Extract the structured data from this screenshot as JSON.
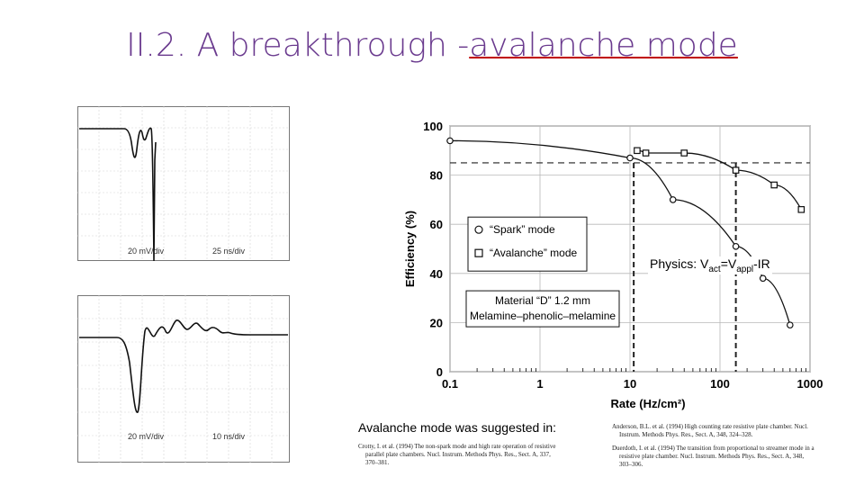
{
  "slide": {
    "title_prefix": "II.2. A breakthrough -",
    "title_highlight": "avalanche mode",
    "physics_label": "Physics: V",
    "physics_sub1": "act",
    "physics_mid": "=V",
    "physics_sub2": "appl",
    "physics_end": "-IR",
    "suggested_text": "Avalanche mode was suggested in:"
  },
  "scope_top": {
    "volts": "20 mV/div",
    "time": "25 ns/div"
  },
  "scope_bottom": {
    "volts": "20 mV/div",
    "time": "10 ns/div"
  },
  "references": {
    "crotty_line1": "Crotty, I. et al. (1994) The non-spark mode and high rate operation of resistive",
    "crotty_line2": "parallel plate chambers. Nucl. Instrum. Methods Phys. Res., Sect. A, 337,",
    "crotty_line3": "370–381.",
    "anderson_line1": "Anderson, B.L. et al. (1994) High counting rate resistive plate chamber. Nucl.",
    "anderson_line2": "Instrum. Methods Phys. Res., Sect. A, 348, 324–328.",
    "duerdoth_line1": "Duerdoth, I. et al. (1994) The transition from proportional to streamer mode in a",
    "duerdoth_line2": "resistive plate chamber. Nucl. Instrum. Methods Phys. Res., Sect. A, 348,",
    "duerdoth_line3": "303–306."
  },
  "chart_data": {
    "type": "scatter",
    "xlabel": "Rate (Hz/cm²)",
    "ylabel": "Efficiency (%)",
    "x_scale": "log",
    "xlim": [
      0.1,
      1000
    ],
    "ylim": [
      0,
      100
    ],
    "x_ticks": [
      "0.1",
      "1",
      "10",
      "100",
      "1000"
    ],
    "y_ticks": [
      "0",
      "20",
      "40",
      "60",
      "80",
      "100"
    ],
    "legend_placement": "center-left",
    "series": [
      {
        "name": "“Spark” mode",
        "marker": "circle",
        "points": [
          [
            0.1,
            94
          ],
          [
            10,
            87
          ],
          [
            30,
            70
          ],
          [
            150,
            51
          ],
          [
            300,
            38
          ],
          [
            600,
            19
          ]
        ]
      },
      {
        "name": "“Avalanche” mode",
        "marker": "square",
        "points": [
          [
            12,
            90
          ],
          [
            15,
            89
          ],
          [
            40,
            89
          ],
          [
            150,
            82
          ],
          [
            400,
            76
          ],
          [
            800,
            66
          ]
        ]
      }
    ],
    "guides": {
      "efficiency_line": 85,
      "rate_lines": [
        11,
        150
      ]
    },
    "annotation_line1": "Material “D” 1.2 mm",
    "annotation_line2": "Melamine–phenolic–melamine",
    "colors": {
      "axis": "#000000",
      "grid": "#b8b8b8",
      "panel": "#ffffff"
    }
  }
}
